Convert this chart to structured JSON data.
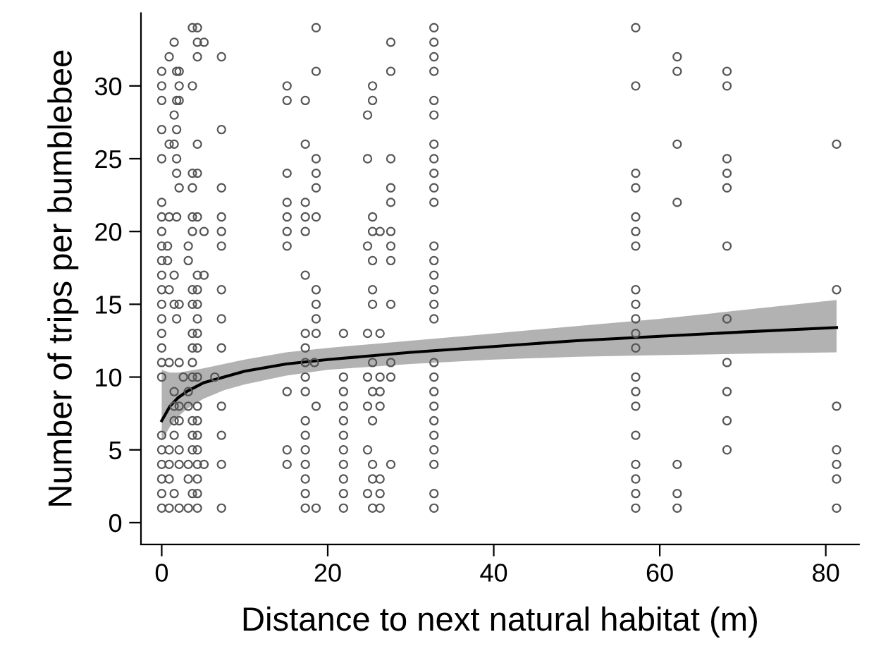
{
  "chart_data": {
    "type": "scatter",
    "xlabel": "Distance to next natural habitat (m)",
    "ylabel": "Number of trips per bumblebee",
    "xlim": [
      -2.5,
      84
    ],
    "ylim": [
      -1.5,
      35
    ],
    "xticks": [
      0,
      20,
      40,
      60,
      80
    ],
    "yticks": [
      0,
      5,
      10,
      15,
      20,
      25,
      30
    ],
    "grid": false,
    "series": [
      {
        "marker": "circle",
        "color": "#555555",
        "x": [
          0,
          0,
          0,
          0,
          0,
          0,
          0,
          0,
          0,
          0,
          0,
          0,
          0,
          0,
          0,
          0,
          0,
          0,
          0,
          0,
          0,
          0,
          0,
          0,
          0.7,
          0.7,
          0.9,
          0.9,
          0.9,
          0.9,
          0.9,
          0.9,
          0.9,
          0.9,
          0.9,
          1.5,
          1.5,
          1.5,
          1.5,
          1.5,
          1.5,
          1.5,
          1.5,
          1.5,
          1.5,
          1.8,
          1.8,
          1.8,
          1.8,
          1.8,
          1.8,
          1.8,
          2.1,
          2.1,
          2.1,
          2.1,
          2.1,
          2.1,
          2.1,
          2.1,
          2.1,
          2.1,
          2.1,
          2.6,
          3.2,
          3.2,
          3.2,
          3.2,
          3.2,
          3.2,
          3.2,
          3.7,
          3.7,
          3.7,
          3.7,
          3.7,
          3.7,
          3.7,
          3.7,
          3.7,
          3.7,
          3.7,
          3.7,
          3.7,
          3.7,
          3.7,
          3.7,
          4.3,
          4.3,
          4.3,
          4.3,
          4.3,
          4.3,
          4.3,
          4.3,
          4.3,
          4.3,
          4.3,
          4.3,
          4.3,
          4.3,
          4.3,
          4.3,
          4.3,
          4.3,
          4.3,
          4.3,
          4.3,
          5.1,
          5.1,
          5.1,
          5.1,
          6.4,
          7.2,
          7.2,
          7.2,
          7.2,
          7.2,
          7.2,
          7.2,
          7.2,
          7.2,
          7.2,
          7.2,
          7.2,
          7.2,
          15.1,
          15.1,
          15.1,
          15.1,
          15.1,
          15.1,
          15.1,
          15.1,
          15.1,
          15.1,
          17.3,
          17.3,
          17.3,
          17.3,
          17.3,
          17.3,
          17.3,
          17.3,
          17.3,
          17.3,
          17.3,
          17.3,
          17.3,
          17.3,
          17.3,
          17.3,
          17.3,
          17.3,
          18.4,
          18.6,
          18.6,
          18.6,
          18.6,
          18.6,
          18.6,
          18.6,
          18.6,
          18.6,
          18.6,
          18.6,
          18.6,
          21.9,
          21.9,
          21.9,
          21.9,
          21.9,
          21.9,
          21.9,
          21.9,
          21.9,
          21.9,
          21.9,
          24.8,
          24.8,
          24.8,
          24.8,
          24.8,
          24.8,
          24.8,
          24.8,
          25.4,
          25.4,
          25.4,
          25.4,
          25.4,
          25.4,
          25.4,
          25.4,
          25.4,
          25.4,
          25.4,
          25.4,
          25.4,
          26.3,
          26.3,
          26.3,
          26.3,
          26.3,
          26.3,
          26.3,
          26.3,
          27.6,
          27.6,
          27.6,
          27.6,
          27.6,
          27.6,
          27.6,
          27.6,
          27.6,
          27.6,
          27.6,
          27.6,
          32.8,
          32.8,
          32.8,
          32.8,
          32.8,
          32.8,
          32.8,
          32.8,
          32.8,
          32.8,
          32.8,
          32.8,
          32.8,
          32.8,
          32.8,
          32.8,
          32.8,
          32.8,
          32.8,
          32.8,
          32.8,
          32.8,
          32.8,
          32.8,
          32.8,
          32.8,
          32.8,
          57.1,
          57.1,
          57.1,
          57.1,
          57.1,
          57.1,
          57.1,
          57.1,
          57.1,
          57.1,
          57.1,
          57.1,
          57.1,
          57.1,
          57.1,
          57.1,
          57.1,
          57.1,
          57.1,
          57.1,
          62.1,
          62.1,
          62.1,
          62.1,
          62.1,
          62.1,
          62.1,
          68.1,
          68.1,
          68.1,
          68.1,
          68.1,
          68.1,
          68.1,
          68.1,
          68.1,
          68.1,
          68.1,
          81.3,
          81.3,
          81.3,
          81.3,
          81.3,
          81.3,
          81.3
        ],
        "values": [
          31,
          30,
          29,
          27,
          25,
          22,
          21,
          20,
          19,
          18,
          17,
          16,
          15,
          14,
          13,
          12,
          11,
          10,
          6,
          5,
          4,
          3,
          2,
          1,
          19,
          18,
          32,
          26,
          21,
          16,
          11,
          5,
          4,
          3,
          1,
          33,
          28,
          26,
          17,
          15,
          9,
          8,
          7,
          6,
          2,
          31,
          29,
          27,
          25,
          24,
          21,
          14,
          31,
          30,
          29,
          23,
          15,
          11,
          8,
          7,
          5,
          4,
          1,
          10,
          19,
          18,
          9,
          8,
          4,
          3,
          1,
          34,
          30,
          24,
          23,
          21,
          20,
          16,
          15,
          13,
          12,
          11,
          10,
          7,
          6,
          5,
          2,
          34,
          33,
          32,
          26,
          24,
          21,
          17,
          16,
          15,
          14,
          13,
          12,
          10,
          8,
          7,
          6,
          5,
          4,
          3,
          2,
          1,
          33,
          20,
          17,
          4,
          10,
          32,
          27,
          23,
          21,
          20,
          19,
          16,
          14,
          12,
          8,
          6,
          4,
          1,
          30,
          29,
          24,
          22,
          21,
          20,
          19,
          9,
          5,
          4,
          29,
          26,
          22,
          21,
          20,
          17,
          13,
          12,
          11,
          10,
          9,
          7,
          6,
          5,
          4,
          3,
          2,
          1,
          11,
          34,
          31,
          25,
          24,
          23,
          21,
          16,
          15,
          14,
          13,
          8,
          1,
          13,
          10,
          9,
          8,
          7,
          6,
          5,
          4,
          3,
          2,
          1,
          28,
          25,
          19,
          13,
          10,
          8,
          5,
          2,
          30,
          29,
          21,
          20,
          18,
          16,
          15,
          11,
          9,
          7,
          4,
          3,
          1,
          20,
          13,
          10,
          9,
          8,
          3,
          2,
          1,
          33,
          31,
          25,
          23,
          22,
          20,
          19,
          18,
          15,
          11,
          10,
          4,
          34,
          33,
          32,
          31,
          29,
          28,
          26,
          25,
          24,
          23,
          22,
          19,
          18,
          17,
          16,
          15,
          14,
          11,
          10,
          9,
          8,
          7,
          6,
          5,
          4,
          2,
          1,
          34,
          30,
          24,
          23,
          21,
          20,
          19,
          16,
          15,
          14,
          13,
          12,
          10,
          9,
          8,
          6,
          4,
          3,
          2,
          1,
          32,
          31,
          26,
          22,
          4,
          2,
          1,
          31,
          30,
          25,
          24,
          23,
          19,
          14,
          11,
          9,
          7,
          5,
          26,
          16,
          8,
          5,
          4,
          3,
          1
        ]
      },
      {
        "type": "line",
        "marker": "none",
        "color": "#000000",
        "x": [
          0,
          1,
          2,
          3,
          5,
          7.5,
          10,
          15,
          20,
          30,
          40,
          50,
          60,
          70,
          81.3
        ],
        "values": [
          7.0,
          8.0,
          8.6,
          9.0,
          9.6,
          10.0,
          10.4,
          10.9,
          11.2,
          11.7,
          12.1,
          12.5,
          12.8,
          13.1,
          13.4
        ],
        "lower": [
          5.6,
          6.6,
          7.3,
          7.8,
          8.5,
          9.1,
          9.5,
          10.1,
          10.5,
          10.9,
          11.2,
          11.4,
          11.5,
          11.6,
          11.7
        ],
        "upper": [
          10.5,
          10.3,
          10.3,
          10.4,
          10.6,
          10.9,
          11.2,
          11.7,
          12.0,
          12.5,
          13.0,
          13.5,
          14.0,
          14.6,
          15.3
        ]
      }
    ]
  }
}
